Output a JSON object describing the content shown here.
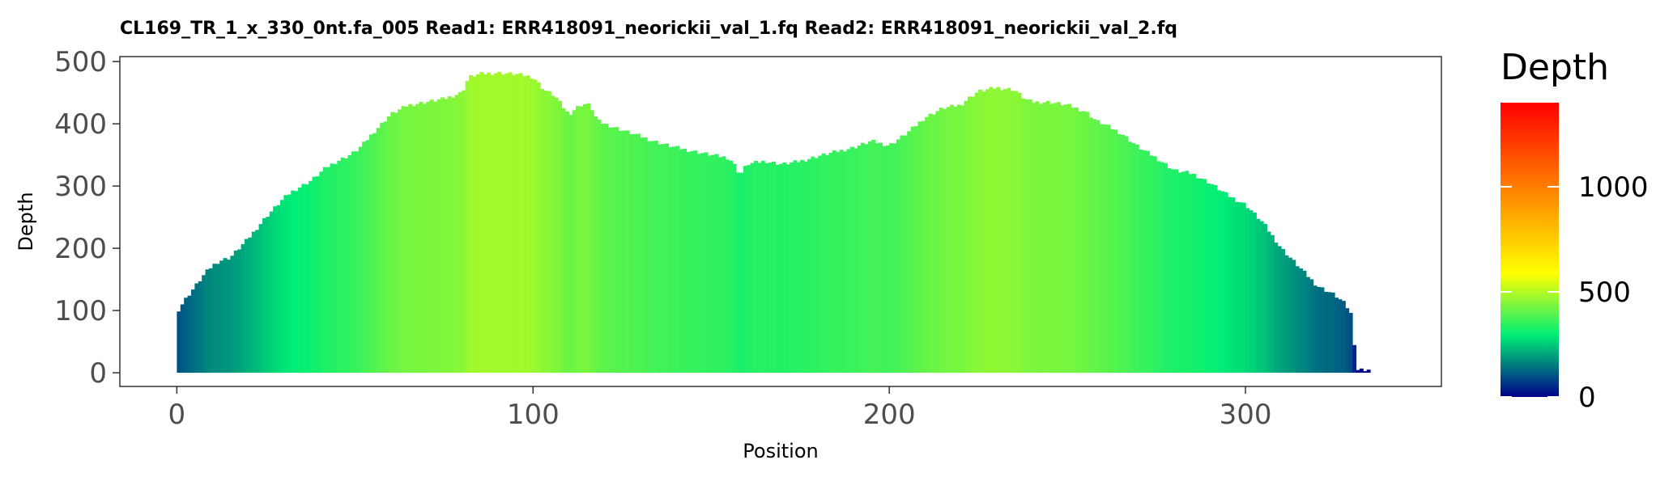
{
  "chart_data": {
    "type": "bar",
    "title": "CL169_TR_1_x_330_0nt.fa_005   Read1: ERR418091_neorickii_val_1.fq   Read2: ERR418091_neorickii_val_2.fq",
    "xlabel": "Position",
    "ylabel": "Depth",
    "xlim": [
      -16,
      355
    ],
    "ylim": [
      -22,
      508
    ],
    "xticks": [
      0,
      100,
      200,
      300
    ],
    "yticks": [
      0,
      100,
      200,
      300,
      400,
      500
    ],
    "grid": false,
    "legend": {
      "title": "Depth",
      "position": "right",
      "range": [
        0,
        1400
      ],
      "ticks": [
        0,
        500,
        1000
      ],
      "colors": [
        "#00008b",
        "#00ee76",
        "#ffff00",
        "#ff0000"
      ]
    },
    "x": [
      0,
      2,
      4,
      6,
      8,
      10,
      12,
      15,
      20,
      25,
      30,
      32,
      35,
      38,
      40,
      42,
      45,
      48,
      50,
      52,
      55,
      60,
      65,
      70,
      75,
      80,
      82,
      85,
      90,
      95,
      100,
      103,
      106,
      108,
      110,
      112,
      114,
      116,
      118,
      120,
      125,
      130,
      135,
      140,
      145,
      150,
      155,
      157,
      158,
      159,
      160,
      165,
      170,
      175,
      180,
      185,
      190,
      195,
      200,
      205,
      210,
      215,
      220,
      222,
      225,
      230,
      235,
      238,
      240,
      245,
      250,
      255,
      258,
      260,
      265,
      270,
      275,
      280,
      285,
      290,
      295,
      300,
      305,
      310,
      315,
      320,
      325,
      328,
      330,
      331,
      335
    ],
    "values": [
      97,
      115,
      130,
      145,
      160,
      172,
      180,
      185,
      215,
      250,
      280,
      290,
      300,
      310,
      320,
      330,
      340,
      348,
      355,
      365,
      385,
      415,
      430,
      435,
      440,
      450,
      475,
      480,
      482,
      480,
      475,
      455,
      445,
      430,
      415,
      425,
      432,
      430,
      405,
      400,
      390,
      380,
      370,
      362,
      356,
      350,
      345,
      330,
      318,
      325,
      335,
      340,
      335,
      340,
      348,
      355,
      362,
      372,
      365,
      385,
      410,
      425,
      430,
      440,
      452,
      458,
      455,
      440,
      435,
      435,
      430,
      420,
      405,
      400,
      385,
      362,
      345,
      325,
      320,
      305,
      285,
      270,
      240,
      200,
      170,
      140,
      125,
      110,
      90,
      5,
      5
    ]
  }
}
